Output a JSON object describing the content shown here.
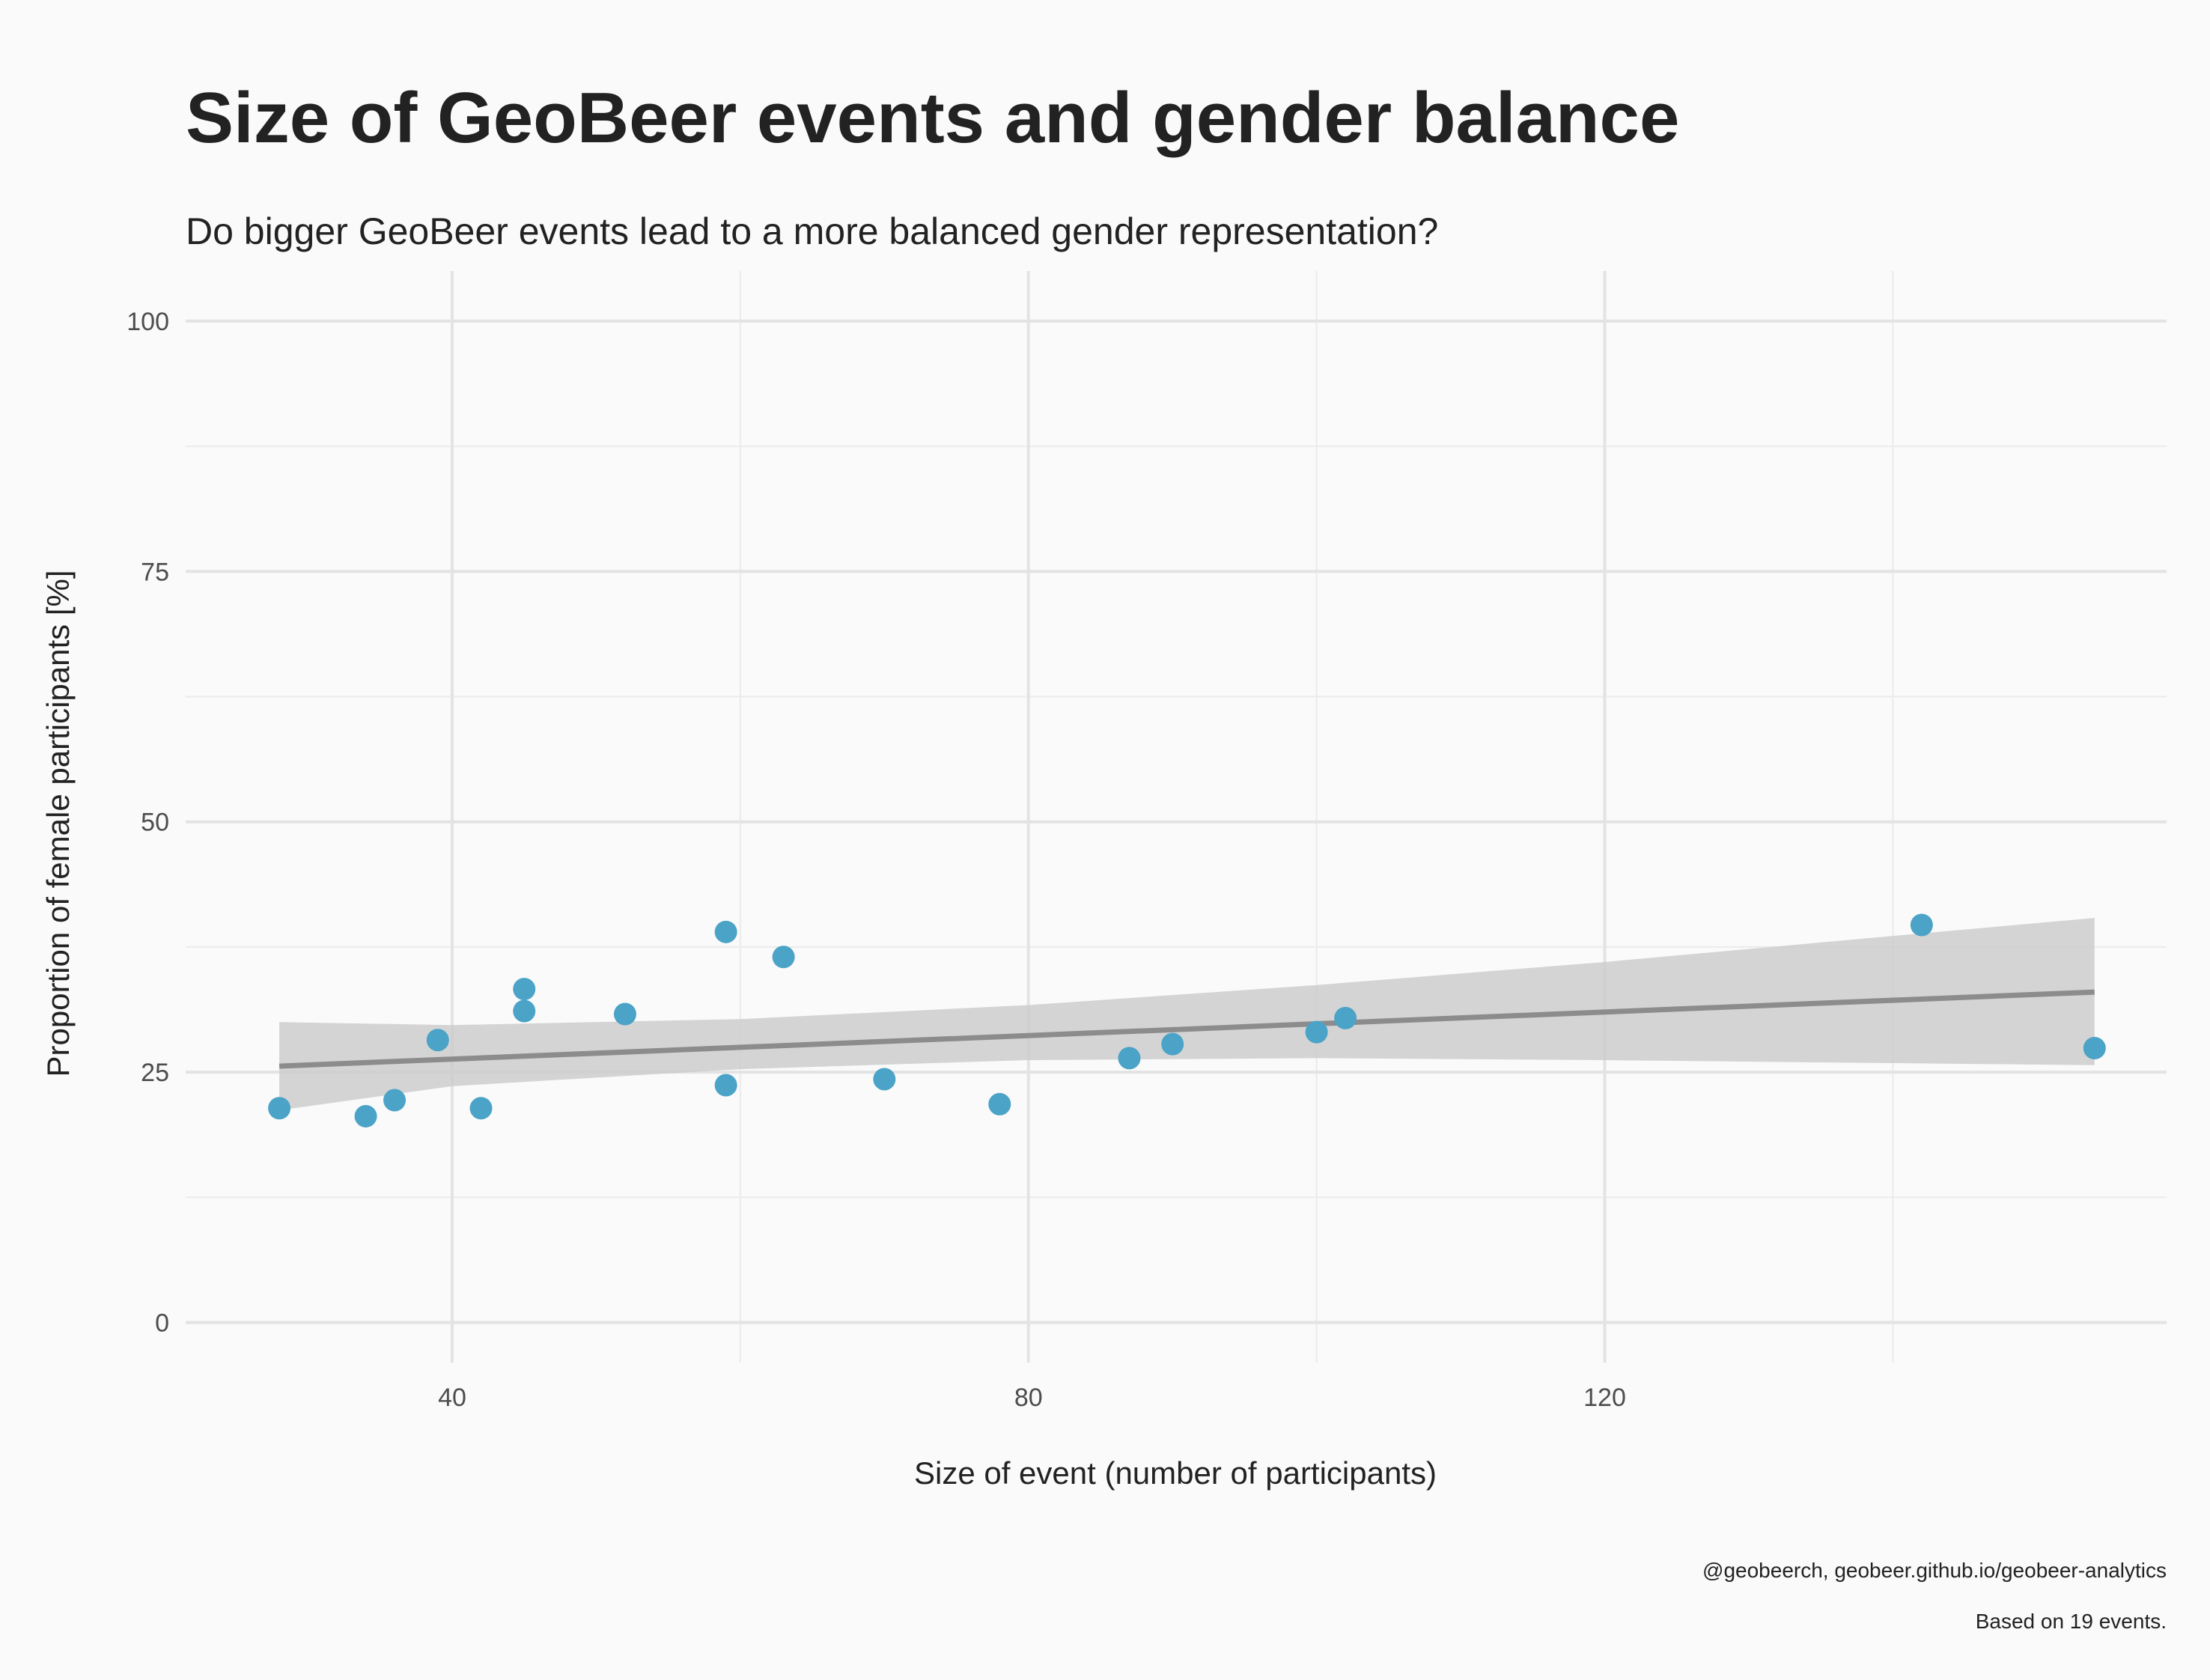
{
  "chart_data": {
    "type": "scatter",
    "title": "Size of GeoBeer events and gender balance",
    "subtitle": "Do bigger GeoBeer events lead to a more balanced gender representation?",
    "xlabel": "Size of event (number of participants)",
    "ylabel": "Proportion of female participants [%]",
    "xlim": [
      21.5,
      159
    ],
    "ylim": [
      -4,
      105
    ],
    "x_ticks": [
      40,
      80,
      120
    ],
    "x_tick_labels": [
      "40",
      "80",
      "120"
    ],
    "y_ticks": [
      0,
      25,
      50,
      75,
      100
    ],
    "y_tick_labels": [
      "0",
      "25",
      "50",
      "75",
      "100"
    ],
    "x_minor_grid": [
      60,
      100,
      140
    ],
    "y_minor_grid": [
      12.5,
      37.5,
      62.5,
      87.5
    ],
    "grid": true,
    "legend": "none",
    "point_color": "#4BA3C7",
    "trend_color": "#8C8C8C",
    "band_color": "#CCCCCC",
    "points": [
      {
        "x": 28,
        "y": 21.4
      },
      {
        "x": 34,
        "y": 20.6
      },
      {
        "x": 36,
        "y": 22.2
      },
      {
        "x": 39,
        "y": 28.2
      },
      {
        "x": 42,
        "y": 21.4
      },
      {
        "x": 45,
        "y": 33.3
      },
      {
        "x": 45,
        "y": 31.1
      },
      {
        "x": 52,
        "y": 30.8
      },
      {
        "x": 59,
        "y": 39.0
      },
      {
        "x": 59,
        "y": 23.7
      },
      {
        "x": 63,
        "y": 36.5
      },
      {
        "x": 70,
        "y": 24.3
      },
      {
        "x": 78,
        "y": 21.8
      },
      {
        "x": 87,
        "y": 26.4
      },
      {
        "x": 90,
        "y": 27.8
      },
      {
        "x": 100,
        "y": 29.0
      },
      {
        "x": 102,
        "y": 30.4
      },
      {
        "x": 142,
        "y": 39.7
      },
      {
        "x": 154,
        "y": 27.4
      }
    ],
    "trend": {
      "x": [
        28,
        154
      ],
      "y": [
        25.6,
        33.0
      ],
      "band_x": [
        28,
        40,
        60,
        80,
        100,
        120,
        140,
        154
      ],
      "band_lower": [
        21.2,
        23.6,
        25.3,
        26.2,
        26.4,
        26.2,
        25.9,
        25.7
      ],
      "band_upper": [
        30.0,
        29.7,
        30.3,
        31.7,
        33.7,
        36.0,
        38.6,
        40.4
      ]
    }
  },
  "caption": {
    "source": "@geobeerch, geobeer.github.io/geobeer-analytics",
    "note": "Based on 19 events."
  }
}
